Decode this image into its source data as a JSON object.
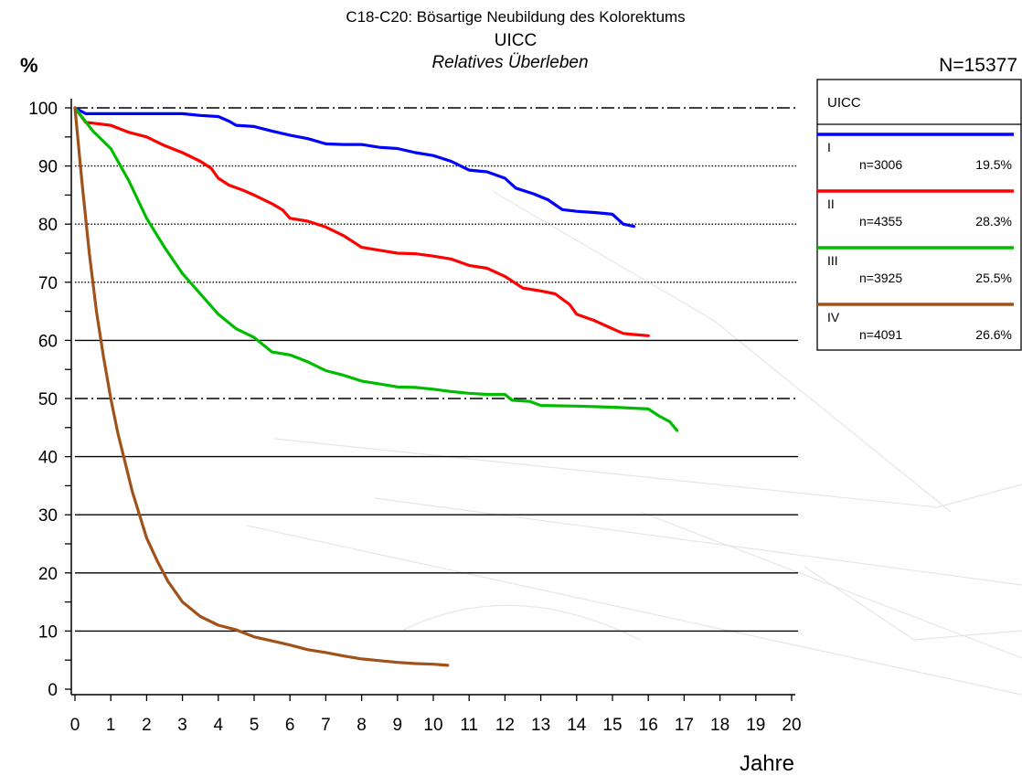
{
  "chart_data": {
    "type": "line",
    "title": "C18-C20: Bösartige Neubildung des Kolorektums",
    "subtitle": "UICC",
    "subtitle2": "Relatives Überleben",
    "ylabel": "%",
    "xlabel": "Jahre",
    "total_n": "N=15377",
    "xlim": [
      0,
      20
    ],
    "ylim": [
      0,
      100
    ],
    "x_ticks": [
      "0",
      "1",
      "2",
      "3",
      "4",
      "5",
      "6",
      "7",
      "8",
      "9",
      "10",
      "11",
      "12",
      "13",
      "14",
      "15",
      "16",
      "17",
      "18",
      "19",
      "20"
    ],
    "y_ticks": [
      "0",
      "10",
      "20",
      "30",
      "40",
      "50",
      "60",
      "70",
      "80",
      "90",
      "100"
    ],
    "grid": "horizontal",
    "legend_position": "right",
    "legend_title": "UICC",
    "series": [
      {
        "name": "I",
        "n": "n=3006",
        "pct": "19.5%",
        "color": "#0000ff",
        "points": [
          [
            0,
            100
          ],
          [
            0.3,
            99
          ],
          [
            1,
            99
          ],
          [
            2,
            99
          ],
          [
            3,
            99
          ],
          [
            3.5,
            98.7
          ],
          [
            4,
            98.5
          ],
          [
            4.3,
            97.7
          ],
          [
            4.5,
            97
          ],
          [
            5,
            96.8
          ],
          [
            5.5,
            96
          ],
          [
            6,
            95.3
          ],
          [
            6.5,
            94.7
          ],
          [
            7,
            93.8
          ],
          [
            7.5,
            93.7
          ],
          [
            8,
            93.7
          ],
          [
            8.5,
            93.2
          ],
          [
            9,
            93
          ],
          [
            9.5,
            92.3
          ],
          [
            10,
            91.8
          ],
          [
            10.5,
            90.8
          ],
          [
            11,
            89.3
          ],
          [
            11.5,
            89
          ],
          [
            12,
            87.9
          ],
          [
            12.3,
            86.2
          ],
          [
            12.8,
            85.2
          ],
          [
            13.2,
            84.2
          ],
          [
            13.6,
            82.5
          ],
          [
            14,
            82.2
          ],
          [
            14.5,
            82
          ],
          [
            15,
            81.7
          ],
          [
            15.3,
            80
          ],
          [
            15.6,
            79.6
          ]
        ]
      },
      {
        "name": "II",
        "n": "n=4355",
        "pct": "28.3%",
        "color": "#ff0000",
        "points": [
          [
            0,
            100
          ],
          [
            0.3,
            97.5
          ],
          [
            0.6,
            97.3
          ],
          [
            1,
            97
          ],
          [
            1.5,
            95.8
          ],
          [
            2,
            95
          ],
          [
            2.5,
            93.5
          ],
          [
            3,
            92.3
          ],
          [
            3.5,
            90.8
          ],
          [
            3.8,
            89.6
          ],
          [
            4,
            87.9
          ],
          [
            4.3,
            86.7
          ],
          [
            4.7,
            85.8
          ],
          [
            5,
            85
          ],
          [
            5.5,
            83.5
          ],
          [
            5.8,
            82.4
          ],
          [
            6,
            81
          ],
          [
            6.5,
            80.5
          ],
          [
            7,
            79.5
          ],
          [
            7.5,
            78
          ],
          [
            8,
            76
          ],
          [
            8.5,
            75.5
          ],
          [
            9,
            75
          ],
          [
            9.5,
            74.9
          ],
          [
            10,
            74.5
          ],
          [
            10.5,
            74
          ],
          [
            11,
            72.9
          ],
          [
            11.5,
            72.4
          ],
          [
            12,
            71
          ],
          [
            12.5,
            69
          ],
          [
            13,
            68.5
          ],
          [
            13.4,
            68
          ],
          [
            13.8,
            66.2
          ],
          [
            14,
            64.5
          ],
          [
            14.5,
            63.4
          ],
          [
            15,
            62
          ],
          [
            15.3,
            61.2
          ],
          [
            15.6,
            61
          ],
          [
            16,
            60.8
          ]
        ]
      },
      {
        "name": "III",
        "n": "n=3925",
        "pct": "25.5%",
        "color": "#00bb00",
        "points": [
          [
            0,
            100
          ],
          [
            0.5,
            96
          ],
          [
            1,
            93
          ],
          [
            1.5,
            87.5
          ],
          [
            2,
            81
          ],
          [
            2.5,
            76
          ],
          [
            3,
            71.5
          ],
          [
            3.5,
            68
          ],
          [
            4,
            64.5
          ],
          [
            4.5,
            62
          ],
          [
            5,
            60.5
          ],
          [
            5.5,
            58
          ],
          [
            6,
            57.5
          ],
          [
            6.5,
            56.3
          ],
          [
            7,
            54.8
          ],
          [
            7.5,
            54
          ],
          [
            8,
            53
          ],
          [
            8.5,
            52.5
          ],
          [
            9,
            52
          ],
          [
            9.5,
            51.9
          ],
          [
            10,
            51.6
          ],
          [
            10.5,
            51.2
          ],
          [
            11,
            50.9
          ],
          [
            11.5,
            50.7
          ],
          [
            12,
            50.7
          ],
          [
            12.2,
            49.7
          ],
          [
            12.7,
            49.5
          ],
          [
            13,
            48.8
          ],
          [
            14,
            48.7
          ],
          [
            15,
            48.5
          ],
          [
            16,
            48.2
          ],
          [
            16.3,
            47
          ],
          [
            16.6,
            46
          ],
          [
            16.8,
            44.5
          ]
        ]
      },
      {
        "name": "IV",
        "n": "n=4091",
        "pct": "26.6%",
        "color": "#a0521a",
        "points": [
          [
            0,
            100
          ],
          [
            0.2,
            87
          ],
          [
            0.4,
            75
          ],
          [
            0.6,
            65
          ],
          [
            0.8,
            57
          ],
          [
            1,
            50
          ],
          [
            1.2,
            44
          ],
          [
            1.4,
            39
          ],
          [
            1.6,
            34
          ],
          [
            1.8,
            30
          ],
          [
            2,
            26
          ],
          [
            2.3,
            22
          ],
          [
            2.6,
            18.5
          ],
          [
            3,
            15
          ],
          [
            3.5,
            12.5
          ],
          [
            4,
            11
          ],
          [
            4.5,
            10.2
          ],
          [
            5,
            9
          ],
          [
            5.5,
            8.3
          ],
          [
            6,
            7.6
          ],
          [
            6.5,
            6.8
          ],
          [
            7,
            6.3
          ],
          [
            7.5,
            5.7
          ],
          [
            8,
            5.2
          ],
          [
            8.5,
            4.9
          ],
          [
            9,
            4.6
          ],
          [
            9.5,
            4.4
          ],
          [
            10,
            4.3
          ],
          [
            10.4,
            4.1
          ]
        ]
      }
    ]
  }
}
